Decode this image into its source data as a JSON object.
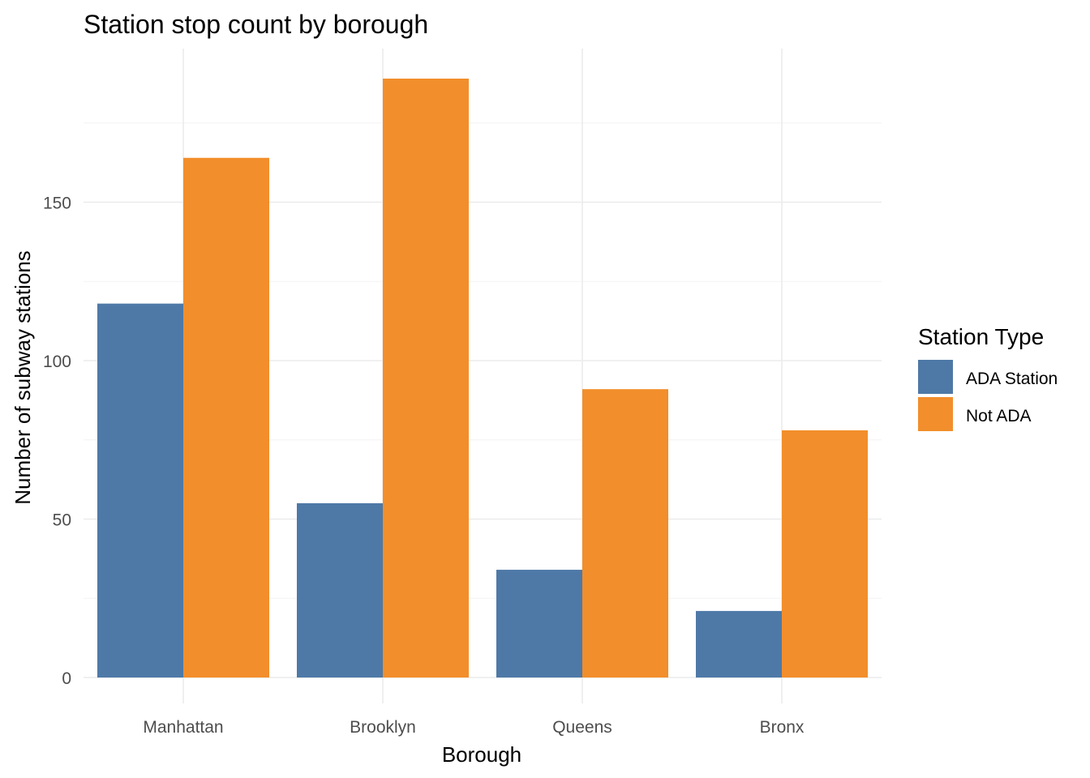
{
  "chart_data": {
    "type": "bar",
    "title": "Station stop count by borough",
    "xlabel": "Borough",
    "ylabel": "Number of subway stations",
    "categories": [
      "Manhattan",
      "Brooklyn",
      "Queens",
      "Bronx"
    ],
    "series": [
      {
        "name": "ADA Station",
        "values": [
          118,
          55,
          34,
          21
        ],
        "color": "#4e79a7"
      },
      {
        "name": "Not ADA",
        "values": [
          164,
          189,
          91,
          78
        ],
        "color": "#f28e2b"
      }
    ],
    "ylim": [
      0,
      198
    ],
    "yticks": [
      0,
      50,
      100,
      150
    ],
    "ytick_labels": [
      "0",
      "50",
      "100",
      "150"
    ],
    "legend_title": "Station Type",
    "legend_position": "right",
    "grid": true
  }
}
